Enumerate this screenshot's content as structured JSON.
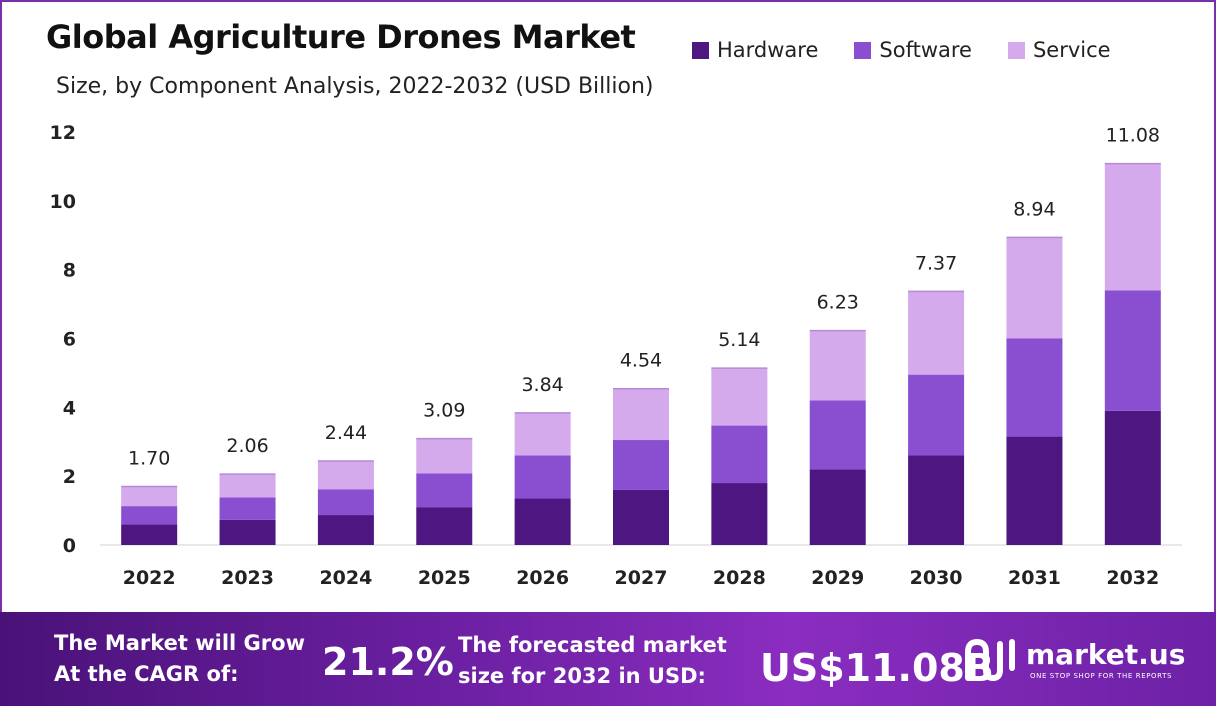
{
  "header": {
    "title": "Global Agriculture Drones Market",
    "subtitle": "Size, by Component Analysis, 2022-2032 (USD Billion)"
  },
  "legend": [
    {
      "label": "Hardware",
      "color": "#4e1680"
    },
    {
      "label": "Software",
      "color": "#8a4fd1"
    },
    {
      "label": "Service",
      "color": "#d4aaec"
    }
  ],
  "chart_data": {
    "type": "bar",
    "stacked": true,
    "categories": [
      "2022",
      "2023",
      "2024",
      "2025",
      "2026",
      "2027",
      "2028",
      "2029",
      "2030",
      "2031",
      "2032"
    ],
    "series": [
      {
        "name": "Hardware",
        "color": "#4e1680",
        "values": [
          0.6,
          0.73,
          0.87,
          1.1,
          1.35,
          1.6,
          1.8,
          2.2,
          2.6,
          3.15,
          3.9
        ]
      },
      {
        "name": "Software",
        "color": "#8a4fd1",
        "values": [
          0.53,
          0.65,
          0.75,
          0.98,
          1.25,
          1.45,
          1.67,
          2.0,
          2.35,
          2.85,
          3.5
        ]
      },
      {
        "name": "Service",
        "color": "#d4aaec",
        "values": [
          0.57,
          0.68,
          0.82,
          1.01,
          1.24,
          1.49,
          1.67,
          2.03,
          2.42,
          2.94,
          3.68
        ]
      }
    ],
    "totals": [
      "1.70",
      "2.06",
      "2.44",
      "3.09",
      "3.84",
      "4.54",
      "5.14",
      "6.23",
      "7.37",
      "8.94",
      "11.08"
    ],
    "yticks": [
      "0",
      "2",
      "4",
      "6",
      "8",
      "10",
      "12"
    ],
    "ylim": [
      0,
      12
    ],
    "grid": false,
    "legend_position": "top-right"
  },
  "footer": {
    "cagr_label": "The Market will Grow\nAt the CAGR of:",
    "cagr_value": "21.2%",
    "forecast_label": "The forecasted market\nsize for 2032 in USD:",
    "forecast_value": "US$11.08B",
    "brand": "market.us",
    "brand_tagline": "ONE STOP SHOP FOR THE REPORTS",
    "brand_icon": "market-us-logo-icon"
  }
}
